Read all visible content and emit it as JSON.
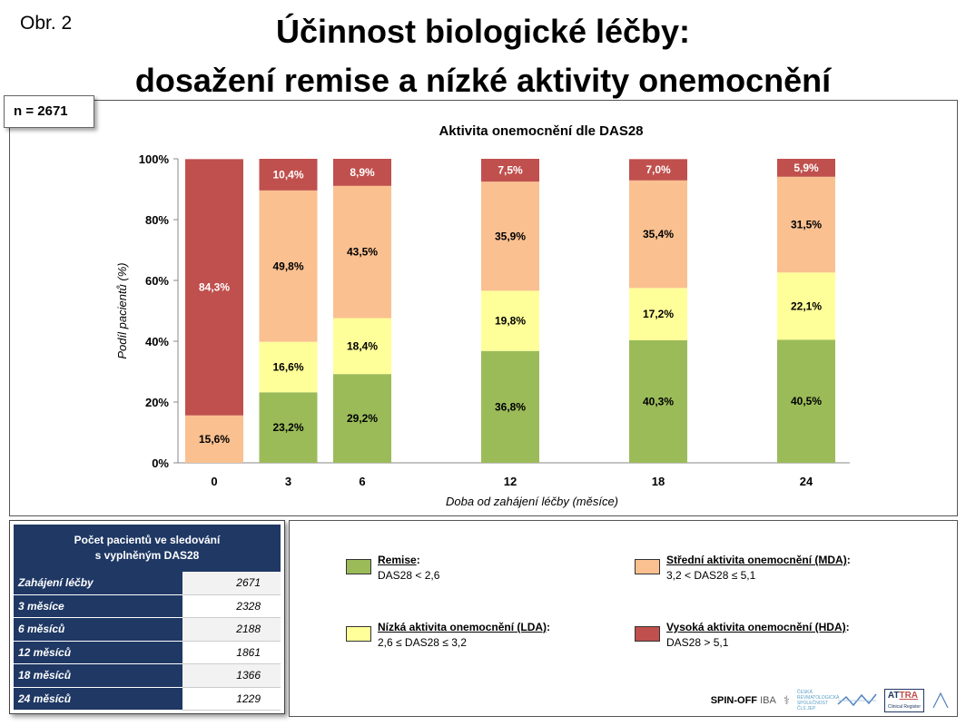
{
  "figure_label": "Obr. 2",
  "title_line1": "Účinnost biologické léčby:",
  "title_line2": "dosažení remise a nízké aktivity onemocnění",
  "n_label": "n = 2671",
  "colors": {
    "remise": "#9bbb59",
    "lda": "#ffff99",
    "mda": "#fac090",
    "hda": "#c0504d",
    "table_header": "#1f3864"
  },
  "chart_data": {
    "type": "bar",
    "stacked": true,
    "title": "Aktivita onemocnění dle DAS28",
    "xlabel": "Doba od zahájení léčby (měsíce)",
    "ylabel": "Podíl pacientů (%)",
    "ylim": [
      0,
      100
    ],
    "yticks": [
      "0%",
      "20%",
      "40%",
      "60%",
      "80%",
      "100%"
    ],
    "categories": [
      "0",
      "3",
      "6",
      "12",
      "18",
      "24"
    ],
    "series": [
      {
        "name": "Remise",
        "color": "#9bbb59",
        "values": [
          0,
          23.2,
          29.2,
          36.8,
          40.3,
          40.5
        ],
        "labels": [
          "",
          "23,2%",
          "29,2%",
          "36,8%",
          "40,3%",
          "40,5%"
        ]
      },
      {
        "name": "Nízká aktivita onemocnění (LDA)",
        "color": "#ffff99",
        "values": [
          0,
          16.6,
          18.4,
          19.8,
          17.2,
          22.1
        ],
        "labels": [
          "",
          "16,6%",
          "18,4%",
          "19,8%",
          "17,2%",
          "22,1%"
        ]
      },
      {
        "name": "Střední aktivita onemocnění (MDA)",
        "color": "#fac090",
        "values": [
          15.6,
          49.8,
          43.5,
          35.9,
          35.4,
          31.5
        ],
        "labels": [
          "15,6%",
          "49,8%",
          "43,5%",
          "35,9%",
          "35,4%",
          "31,5%"
        ]
      },
      {
        "name": "Vysoká aktivita onemocnění (HDA)",
        "color": "#c0504d",
        "values": [
          84.3,
          10.4,
          8.9,
          7.5,
          7.0,
          5.9
        ],
        "labels": [
          "84,3%",
          "10,4%",
          "8,9%",
          "7,5%",
          "7,0%",
          "5,9%"
        ]
      }
    ]
  },
  "table": {
    "header_line1": "Počet pacientů ve sledování",
    "header_line2": "s vyplněným DAS28",
    "rows": [
      {
        "label": "Zahájení léčby",
        "value": "2671"
      },
      {
        "label": "3 měsíce",
        "value": "2328"
      },
      {
        "label": "6 měsíců",
        "value": "2188"
      },
      {
        "label": "12 měsíců",
        "value": "1861"
      },
      {
        "label": "18 měsíců",
        "value": "1366"
      },
      {
        "label": "24 měsíců",
        "value": "1229"
      }
    ]
  },
  "legend": {
    "remise": {
      "title": "Remise",
      "desc": "DAS28 < 2,6"
    },
    "lda": {
      "title": "Nízká aktivita onemocnění (LDA)",
      "desc": "2,6 ≤ DAS28 ≤ 3,2"
    },
    "mda": {
      "title": "Střední aktivita onemocnění (MDA)",
      "desc": "3,2 < DAS28 ≤ 5,1"
    },
    "hda": {
      "title": "Vysoká aktivita onemocnění (HDA)",
      "desc": "DAS28 > 5,1"
    }
  },
  "logos": {
    "spin": "SPIN-OFF",
    "iba": "IBA",
    "society": "ČESKÁ REVMATOLOGICKÁ SPOLEČNOST ČLS JEP",
    "attra_a": "AT",
    "attra_b": "TRA",
    "attra_sub": "Clinical Register"
  }
}
